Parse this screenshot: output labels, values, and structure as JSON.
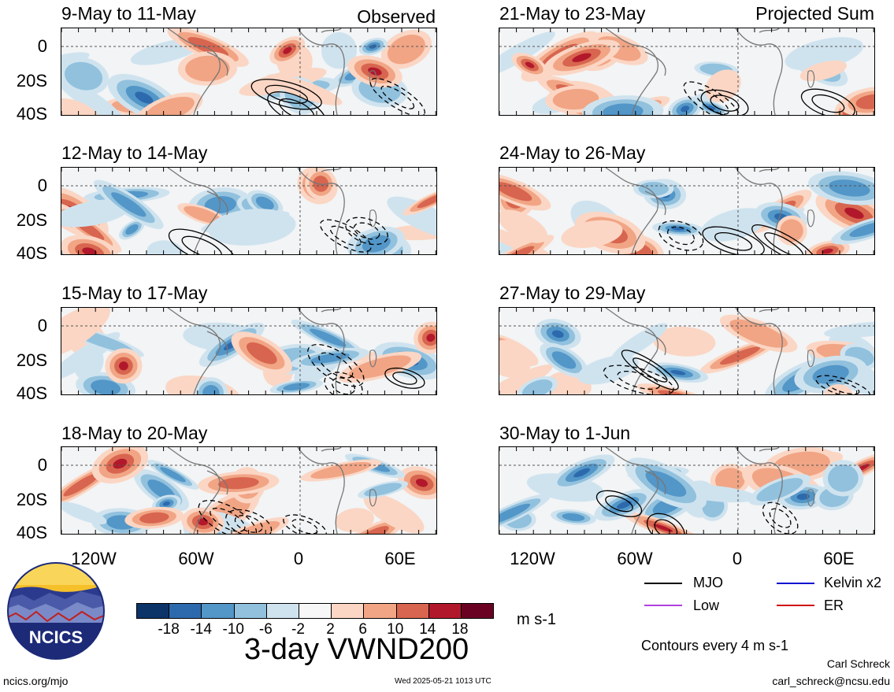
{
  "panels": {
    "left": [
      {
        "title": "9-May to 11-May",
        "tag": "Observed"
      },
      {
        "title": "12-May to 14-May",
        "tag": ""
      },
      {
        "title": "15-May to 17-May",
        "tag": ""
      },
      {
        "title": "18-May to 20-May",
        "tag": ""
      }
    ],
    "right": [
      {
        "title": "21-May to 23-May",
        "tag": "Projected Sum"
      },
      {
        "title": "24-May to 26-May",
        "tag": ""
      },
      {
        "title": "27-May to 29-May",
        "tag": ""
      },
      {
        "title": "30-May to 1-Jun",
        "tag": ""
      }
    ]
  },
  "axes": {
    "lat_labels": [
      "0",
      "20S",
      "40S"
    ],
    "lon_labels": [
      "120W",
      "60W",
      "0",
      "60E"
    ]
  },
  "colorbar": {
    "ticks": [
      "-18",
      "-14",
      "-10",
      "-6",
      "-2",
      "2",
      "6",
      "10",
      "14",
      "18"
    ],
    "colors": [
      "#0c3468",
      "#2d6aad",
      "#5396c8",
      "#91c1dd",
      "#cfe3ef",
      "#f7f7f7",
      "#fbd6c4",
      "#f1a585",
      "#d8654f",
      "#b2182b",
      "#6a0022"
    ],
    "units": "m s-1"
  },
  "legend": {
    "mjo": "MJO",
    "kelvin": "Kelvin x2",
    "low": "Low",
    "er": "ER",
    "colors": {
      "mjo": "#000000",
      "kelvin": "#1010d0",
      "low": "#b040e0",
      "er": "#d01010"
    },
    "contours_note": "Contours every 4 m s-1"
  },
  "title": "3-day VWND200",
  "footer": {
    "site": "ncics.org/mjo",
    "timestamp": "Wed 2025-05-21 1013 UTC",
    "author": "Carl Schreck",
    "email": "carl_schreck@ncsu.edu"
  },
  "logo": {
    "text": "NCICS"
  }
}
